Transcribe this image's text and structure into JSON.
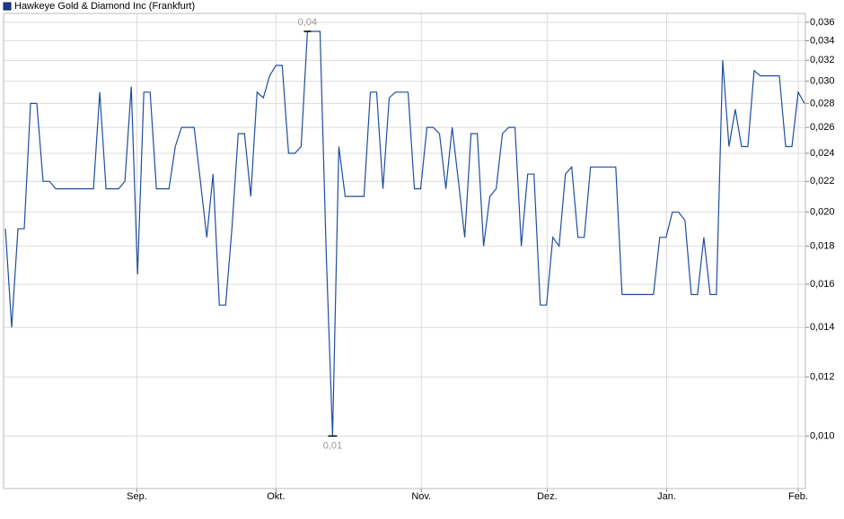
{
  "chart_data": {
    "type": "line",
    "log_y": true,
    "grid": true,
    "series": [
      {
        "name": "Hawkeye Gold & Diamond Inc (Frankfurt)",
        "color": "#1f4e9e",
        "values": [
          0.019,
          0.014,
          0.019,
          0.019,
          0.028,
          0.028,
          0.022,
          0.022,
          0.0215,
          0.0215,
          0.0215,
          0.0215,
          0.0215,
          0.0215,
          0.0215,
          0.029,
          0.0215,
          0.0215,
          0.0215,
          0.022,
          0.0295,
          0.0165,
          0.029,
          0.029,
          0.0215,
          0.0215,
          0.0215,
          0.0245,
          0.026,
          0.026,
          0.026,
          0.022,
          0.0185,
          0.0225,
          0.015,
          0.015,
          0.019,
          0.0255,
          0.0255,
          0.021,
          0.029,
          0.0285,
          0.0305,
          0.0315,
          0.0315,
          0.024,
          0.024,
          0.0245,
          0.035,
          0.035,
          0.035,
          0.0175,
          0.01,
          0.0245,
          0.021,
          0.021,
          0.021,
          0.021,
          0.029,
          0.029,
          0.0215,
          0.0285,
          0.029,
          0.029,
          0.029,
          0.0215,
          0.0215,
          0.026,
          0.026,
          0.0255,
          0.0215,
          0.026,
          0.022,
          0.0185,
          0.0255,
          0.0255,
          0.018,
          0.021,
          0.0215,
          0.0255,
          0.026,
          0.026,
          0.018,
          0.0225,
          0.0225,
          0.015,
          0.015,
          0.0185,
          0.018,
          0.0225,
          0.023,
          0.0185,
          0.0185,
          0.023,
          0.023,
          0.023,
          0.023,
          0.023,
          0.0155,
          0.0155,
          0.0155,
          0.0155,
          0.0155,
          0.0155,
          0.0185,
          0.0185,
          0.02,
          0.02,
          0.0195,
          0.0155,
          0.0155,
          0.0185,
          0.0155,
          0.0155,
          0.032,
          0.0245,
          0.0275,
          0.0245,
          0.0245,
          0.031,
          0.0305,
          0.0305,
          0.0305,
          0.0305,
          0.0245,
          0.0245,
          0.029,
          0.028
        ]
      }
    ],
    "annotations": {
      "max_label": "0,04",
      "min_label": "0,01"
    },
    "xlim": [
      0,
      127
    ],
    "xticks": [
      {
        "value": 20.9,
        "label": "Sep."
      },
      {
        "value": 43,
        "label": "Okt."
      },
      {
        "value": 66.1,
        "label": "Nov."
      },
      {
        "value": 86.1,
        "label": "Dez."
      },
      {
        "value": 105.1,
        "label": "Jan."
      },
      {
        "value": 126,
        "label": "Feb."
      }
    ],
    "ylim": [
      0.0085,
      0.037
    ],
    "yticks": [
      {
        "value": 0.01,
        "label": "0,010"
      },
      {
        "value": 0.012,
        "label": "0,012"
      },
      {
        "value": 0.014,
        "label": "0,014"
      },
      {
        "value": 0.016,
        "label": "0,016"
      },
      {
        "value": 0.018,
        "label": "0,018"
      },
      {
        "value": 0.02,
        "label": "0,020"
      },
      {
        "value": 0.022,
        "label": "0,022"
      },
      {
        "value": 0.024,
        "label": "0,024"
      },
      {
        "value": 0.026,
        "label": "0,026"
      },
      {
        "value": 0.028,
        "label": "0,028"
      },
      {
        "value": 0.03,
        "label": "0,030"
      },
      {
        "value": 0.032,
        "label": "0,032"
      },
      {
        "value": 0.034,
        "label": "0,034"
      },
      {
        "value": 0.036,
        "label": "0,036"
      }
    ]
  }
}
